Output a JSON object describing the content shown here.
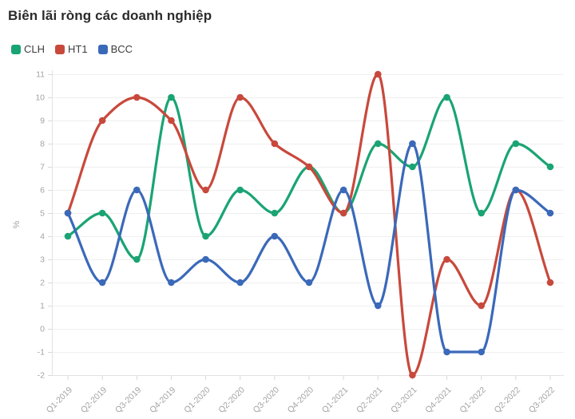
{
  "title": "Biên lãi ròng các doanh nghiệp",
  "chart_data": {
    "type": "line",
    "title": "Biên lãi ròng các doanh nghiệp",
    "xlabel": "",
    "ylabel": "%",
    "ylim": [
      -2,
      11
    ],
    "y_ticks": [
      -2,
      -1,
      0,
      1,
      2,
      3,
      4,
      5,
      6,
      7,
      8,
      9,
      10,
      11
    ],
    "grid": true,
    "smooth": true,
    "legend_position": "top-left",
    "categories": [
      "Q1-2019",
      "Q2-2019",
      "Q3-2019",
      "Q4-2019",
      "Q1-2020",
      "Q2-2020",
      "Q3-2020",
      "Q4-2020",
      "Q1-2021",
      "Q2-2021",
      "Q3-2021",
      "Q4-2021",
      "Q1-2022",
      "Q2-2022",
      "Q3-2022"
    ],
    "series": [
      {
        "name": "CLH",
        "color": "#1aa473",
        "values": [
          4,
          5,
          3,
          10,
          4,
          6,
          5,
          7,
          5,
          8,
          7,
          10,
          5,
          8,
          7
        ]
      },
      {
        "name": "HT1",
        "color": "#c8493c",
        "values": [
          5,
          9,
          10,
          9,
          6,
          10,
          8,
          7,
          5,
          11,
          -2,
          3,
          1,
          6,
          2
        ]
      },
      {
        "name": "BCC",
        "color": "#3b69b9",
        "values": [
          5,
          2,
          6,
          2,
          3,
          2,
          4,
          2,
          6,
          1,
          8,
          -1,
          -1,
          6,
          5
        ]
      }
    ],
    "style": {
      "grid_color": "#efefef",
      "axis_color": "#e2e2e2",
      "tick_color": "#d9d9d9",
      "tick_label_color": "#a3a3a3",
      "line_width": 3.2,
      "marker_radius": 4.3
    }
  }
}
